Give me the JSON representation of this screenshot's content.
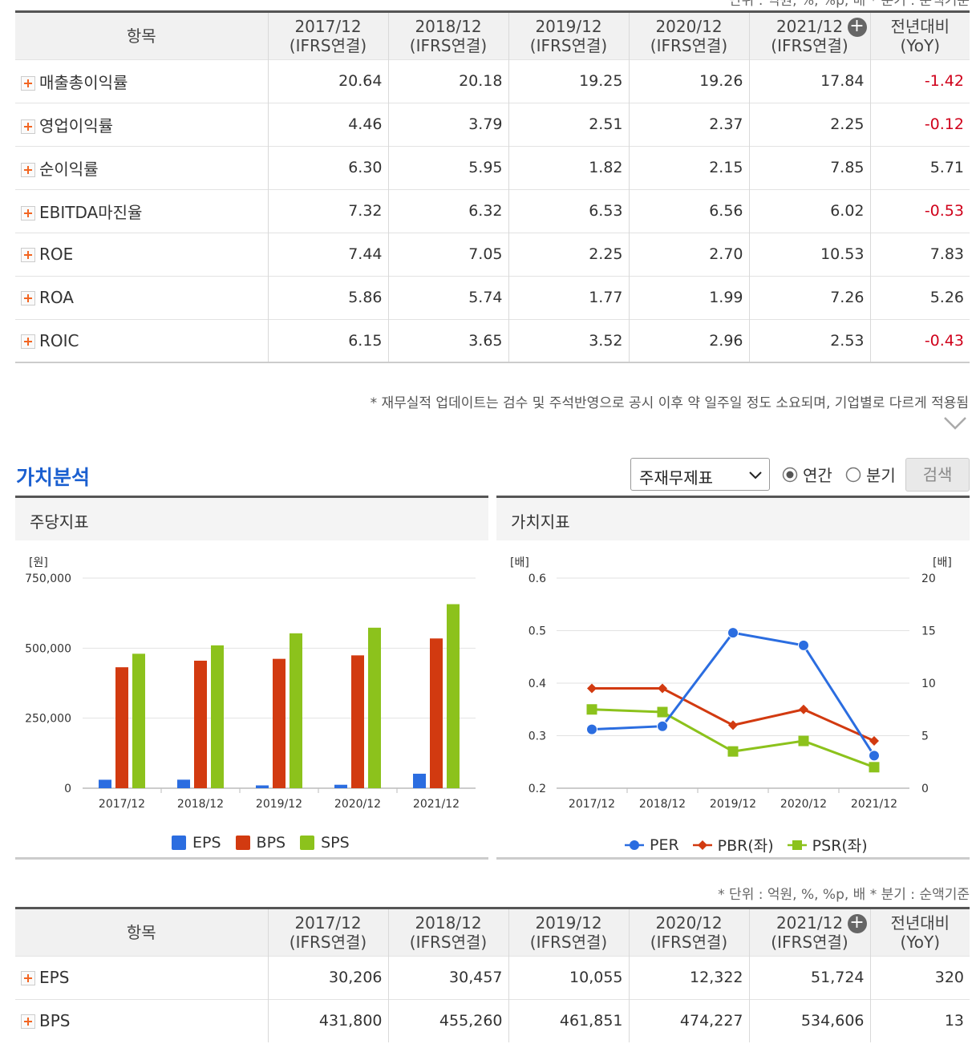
{
  "top_note": "단위 : 억원, %, %p, 배      * 분기 : 순액기준",
  "table_header": {
    "item": "항목",
    "periods": [
      {
        "period": "2017/12",
        "basis": "(IFRS연결)"
      },
      {
        "period": "2018/12",
        "basis": "(IFRS연결)"
      },
      {
        "period": "2019/12",
        "basis": "(IFRS연결)"
      },
      {
        "period": "2020/12",
        "basis": "(IFRS연결)"
      },
      {
        "period": "2021/12",
        "basis": "(IFRS연결)"
      }
    ],
    "yoy_top": "전년대비",
    "yoy_bottom": "(YoY)",
    "add_icon": "+"
  },
  "profit_rows": [
    {
      "label": "매출총이익률",
      "values": [
        "20.64",
        "20.18",
        "19.25",
        "19.26",
        "17.84"
      ],
      "yoy": "-1.42",
      "yoy_negative": true
    },
    {
      "label": "영업이익률",
      "values": [
        "4.46",
        "3.79",
        "2.51",
        "2.37",
        "2.25"
      ],
      "yoy": "-0.12",
      "yoy_negative": true
    },
    {
      "label": "순이익률",
      "values": [
        "6.30",
        "5.95",
        "1.82",
        "2.15",
        "7.85"
      ],
      "yoy": "5.71",
      "yoy_negative": false
    },
    {
      "label": "EBITDA마진율",
      "values": [
        "7.32",
        "6.32",
        "6.53",
        "6.56",
        "6.02"
      ],
      "yoy": "-0.53",
      "yoy_negative": true
    },
    {
      "label": "ROE",
      "values": [
        "7.44",
        "7.05",
        "2.25",
        "2.70",
        "10.53"
      ],
      "yoy": "7.83",
      "yoy_negative": false
    },
    {
      "label": "ROA",
      "values": [
        "5.86",
        "5.74",
        "1.77",
        "1.99",
        "7.26"
      ],
      "yoy": "5.26",
      "yoy_negative": false
    },
    {
      "label": "ROIC",
      "values": [
        "6.15",
        "3.65",
        "3.52",
        "2.96",
        "2.53"
      ],
      "yoy": "-0.43",
      "yoy_negative": true
    }
  ],
  "disclaimer": "* 재무실적 업데이트는 검수 및 주석반영으로 공시 이후 약 일주일 정도 소요되며, 기업별로 다르게 적용됨",
  "section_title": "가치분석",
  "controls": {
    "select_value": "주재무제표",
    "radio_annual": "연간",
    "radio_quarter": "분기",
    "search_button": "검색"
  },
  "chart_panels": {
    "left_title": "주당지표",
    "right_title": "가치지표"
  },
  "colors": {
    "eps": "#2b6de0",
    "bps": "#d23a10",
    "sps": "#8cc21c",
    "per": "#2b6de0",
    "pbr": "#d23a10",
    "psr": "#8cc21c",
    "negative": "#d0021b"
  },
  "chart_data": [
    {
      "type": "bar",
      "ylabel": "[원]",
      "ylim": [
        0,
        750000
      ],
      "yticks": [
        "750,000",
        "500,000",
        "250,000",
        "0"
      ],
      "ytick_values": [
        750000,
        500000,
        250000,
        0
      ],
      "categories": [
        "2017/12",
        "2018/12",
        "2019/12",
        "2020/12",
        "2021/12"
      ],
      "series": [
        {
          "name": "EPS",
          "values": [
            30206,
            30457,
            10055,
            12322,
            51724
          ]
        },
        {
          "name": "BPS",
          "values": [
            431800,
            455260,
            461851,
            474227,
            534606
          ]
        },
        {
          "name": "SPS",
          "values": [
            480000,
            510000,
            553000,
            573000,
            657000
          ]
        }
      ],
      "legend": "bottom",
      "grid": true
    },
    {
      "type": "line",
      "ylabel_left": "[배]",
      "ylabel_right": "[배]",
      "ylim_left": [
        0.2,
        0.6
      ],
      "yticks_left": [
        "0.6",
        "0.5",
        "0.4",
        "0.3",
        "0.2"
      ],
      "ytick_values_left": [
        0.6,
        0.5,
        0.4,
        0.3,
        0.2
      ],
      "ylim_right": [
        0,
        20
      ],
      "yticks_right": [
        "20",
        "15",
        "10",
        "5",
        "0"
      ],
      "ytick_values_right": [
        20,
        15,
        10,
        5,
        0
      ],
      "categories": [
        "2017/12",
        "2018/12",
        "2019/12",
        "2020/12",
        "2021/12"
      ],
      "series": [
        {
          "name": "PER",
          "axis": "right",
          "marker": "circle",
          "values": [
            5.6,
            5.9,
            14.8,
            13.6,
            3.1
          ]
        },
        {
          "name": "PBR(좌)",
          "axis": "left",
          "marker": "diamond",
          "values": [
            0.39,
            0.39,
            0.32,
            0.35,
            0.29
          ]
        },
        {
          "name": "PSR(좌)",
          "axis": "left",
          "marker": "square",
          "values": [
            0.35,
            0.345,
            0.27,
            0.29,
            0.24
          ]
        }
      ],
      "legend": "bottom",
      "grid": true
    }
  ],
  "bottom_note": "* 단위 : 억원, %, %p, 배      * 분기 : 순액기준",
  "pershare_rows": [
    {
      "label": "EPS",
      "values": [
        "30,206",
        "30,457",
        "10,055",
        "12,322",
        "51,724"
      ],
      "yoy": "320",
      "yoy_negative": false
    },
    {
      "label": "BPS",
      "values": [
        "431,800",
        "455,260",
        "461,851",
        "474,227",
        "534,606"
      ],
      "yoy": "13",
      "yoy_negative": false
    }
  ]
}
